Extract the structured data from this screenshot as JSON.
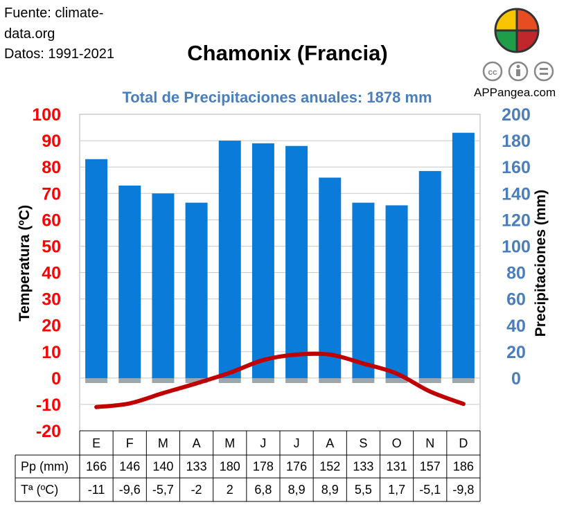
{
  "header": {
    "source_line1": "Fuente: climate-",
    "source_line2": "data.org",
    "period": "Datos: 1991-2021",
    "title": "Chamonix (Francia)",
    "subtitle": "Total de Precipitaciones anuales: 1878 mm",
    "brand": "APPangea.com"
  },
  "colors": {
    "bar": "#0a7bd8",
    "line": "#c00000",
    "temp_axis": "#ff0000",
    "precip_axis": "#4a7ebb",
    "subtitle": "#4a7ebb",
    "grid": "#c8c8c8"
  },
  "icons": [
    "puzzle-logo-icon",
    "cc-icon",
    "attribution-icon",
    "no-derivatives-icon"
  ],
  "chart_data": {
    "type": "bar",
    "title": "Chamonix (Francia)",
    "subtitle": "Total de Precipitaciones anuales: 1878 mm",
    "categories": [
      "E",
      "F",
      "M",
      "A",
      "M",
      "J",
      "J",
      "A",
      "S",
      "O",
      "N",
      "D"
    ],
    "series": [
      {
        "name": "Pp (mm)",
        "type": "bar",
        "axis": "right",
        "values": [
          166,
          146,
          140,
          133,
          180,
          178,
          176,
          152,
          133,
          131,
          157,
          186
        ]
      },
      {
        "name": "Tª (ºC)",
        "type": "line",
        "axis": "left",
        "values": [
          -11,
          -9.6,
          -5.7,
          -2,
          2,
          6.8,
          8.9,
          8.9,
          5.5,
          1.7,
          -5.1,
          -9.8
        ]
      }
    ],
    "ylabel_left": "Temperatura (ºC)",
    "ylabel_right": "Precipitaciones (mm)",
    "ylim_left": [
      -20,
      100
    ],
    "ylim_right": [
      0,
      200
    ],
    "yticks_left": [
      "100",
      "90",
      "80",
      "70",
      "60",
      "50",
      "40",
      "30",
      "20",
      "10",
      "0",
      "-10",
      "-20"
    ],
    "yticks_right": [
      "200",
      "180",
      "160",
      "140",
      "120",
      "100",
      "80",
      "60",
      "40",
      "20",
      "0"
    ],
    "grid": true
  },
  "table": {
    "rows": [
      {
        "label": "Pp (mm)",
        "values": [
          "166",
          "146",
          "140",
          "133",
          "180",
          "178",
          "176",
          "152",
          "133",
          "131",
          "157",
          "186"
        ]
      },
      {
        "label": "Tª (ºC)",
        "values": [
          "-11",
          "-9,6",
          "-5,7",
          "-2",
          "2",
          "6,8",
          "8,9",
          "8,9",
          "5,5",
          "1,7",
          "-5,1",
          "-9,8"
        ]
      }
    ]
  }
}
